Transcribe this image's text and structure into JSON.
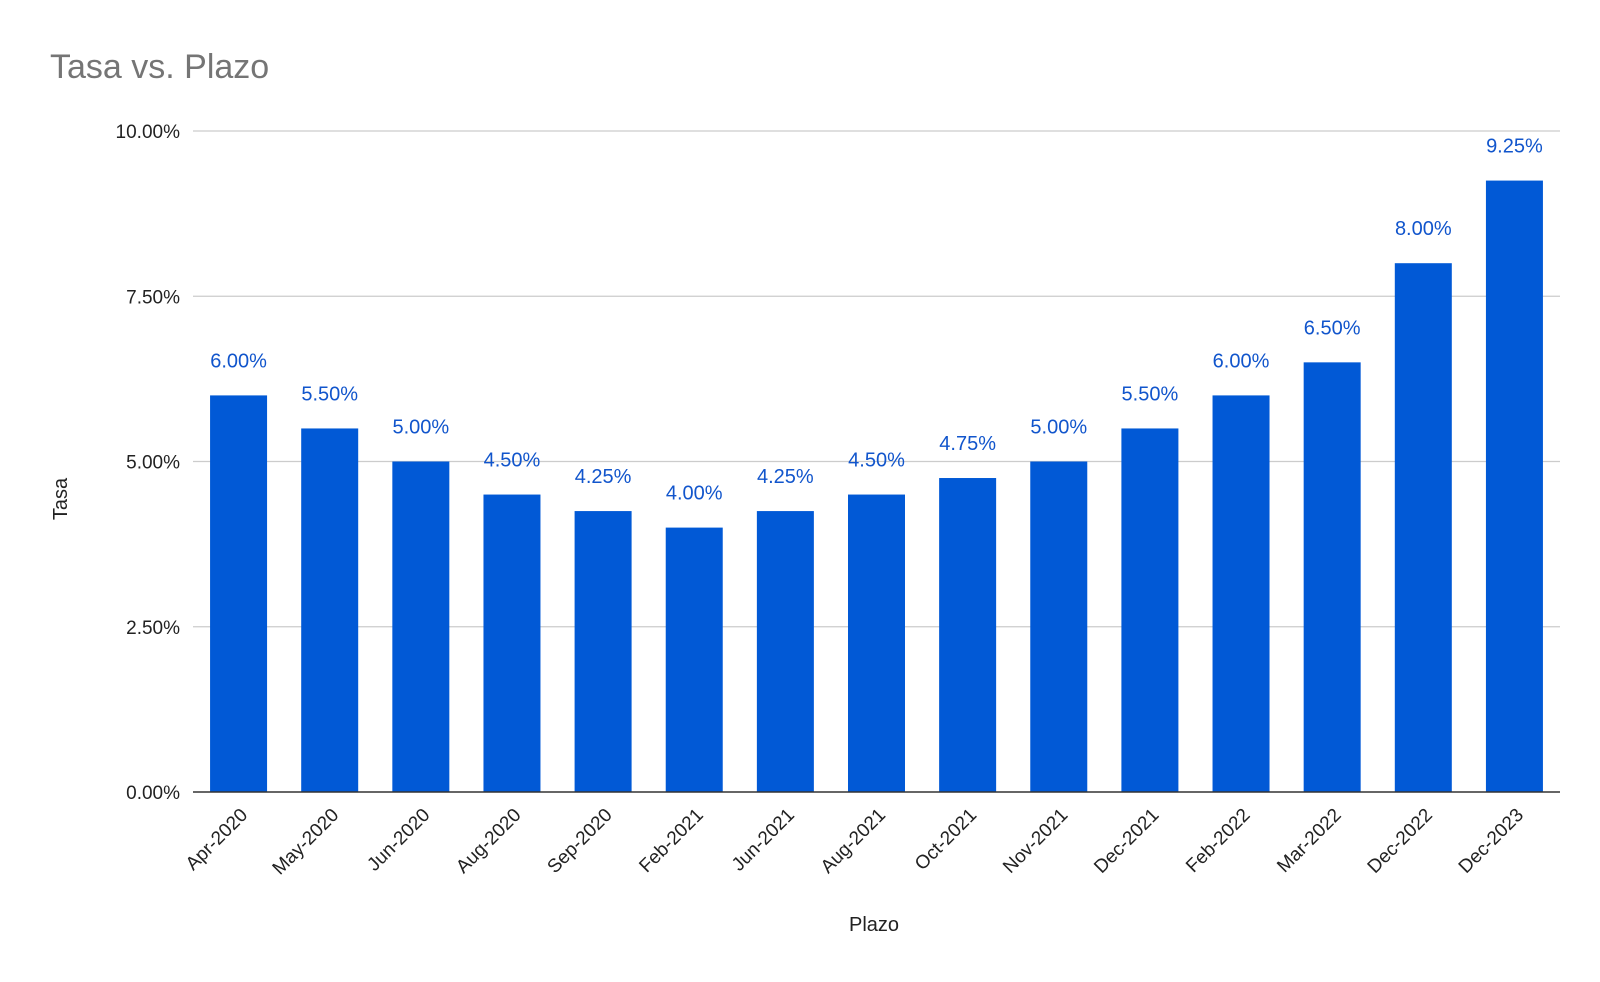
{
  "chart_data": {
    "type": "bar",
    "title": "Tasa vs. Plazo",
    "xlabel": "Plazo",
    "ylabel": "Tasa",
    "categories": [
      "Apr-2020",
      "May-2020",
      "Jun-2020",
      "Aug-2020",
      "Sep-2020",
      "Feb-2021",
      "Jun-2021",
      "Aug-2021",
      "Oct-2021",
      "Nov-2021",
      "Dec-2021",
      "Feb-2022",
      "Mar-2022",
      "Dec-2022",
      "Dec-2023"
    ],
    "values": [
      6.0,
      5.5,
      5.0,
      4.5,
      4.25,
      4.0,
      4.25,
      4.5,
      4.75,
      5.0,
      5.5,
      6.0,
      6.5,
      8.0,
      9.25
    ],
    "value_labels": [
      "6.00%",
      "5.50%",
      "5.00%",
      "4.50%",
      "4.25%",
      "4.00%",
      "4.25%",
      "4.50%",
      "4.75%",
      "5.00%",
      "5.50%",
      "6.00%",
      "6.50%",
      "8.00%",
      "9.25%"
    ],
    "ylim": [
      0,
      10
    ],
    "y_ticks": [
      0,
      2.5,
      5,
      7.5,
      10
    ],
    "y_tick_labels": [
      "0.00%",
      "2.50%",
      "5.00%",
      "7.50%",
      "10.00%"
    ],
    "grid": true,
    "legend": "none",
    "colors": {
      "bar": "#0159D6",
      "data_label": "#1155CC",
      "title": "#757575"
    }
  }
}
